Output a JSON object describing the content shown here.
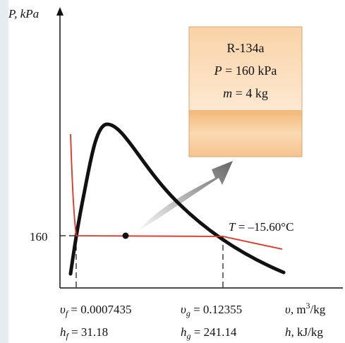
{
  "axis": {
    "y_label": "P, kPa",
    "y_value": "160"
  },
  "tank": {
    "substance": "R-134a",
    "pressure": {
      "symbol": "P",
      "text": "= 160 kPa"
    },
    "mass": {
      "symbol": "m",
      "text": "= 4 kg"
    }
  },
  "isotherm": {
    "symbol": "T",
    "text": "= –15.60°C"
  },
  "properties": {
    "vf": {
      "symbol": "υ",
      "sub": "f",
      "text": "= 0.0007435"
    },
    "vg": {
      "symbol": "υ",
      "sub": "g",
      "text": "= 0.12355"
    },
    "v_unit": {
      "symbol": "υ",
      "text": ", m",
      "sup": "3",
      "tail": "/kg"
    },
    "hf": {
      "symbol": "h",
      "sub": "f",
      "text": "= 31.18"
    },
    "hg": {
      "symbol": "h",
      "sub": "g",
      "text": "= 241.14"
    },
    "h_unit": {
      "symbol": "h",
      "text": ", kJ/kg"
    }
  }
}
